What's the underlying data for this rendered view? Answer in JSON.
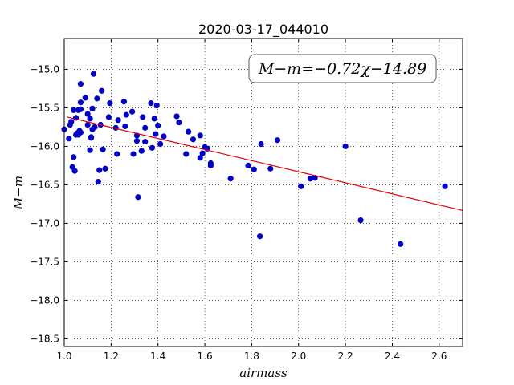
{
  "chart_data": {
    "type": "scatter",
    "title": "2020-03-17_044010",
    "xlabel": "airmass",
    "ylabel": "M−m",
    "xlim": [
      1.0,
      2.7
    ],
    "ylim": [
      -18.6,
      -14.6
    ],
    "y_inverted": true,
    "grid": true,
    "grid_style": "dotted",
    "xticks": [
      1.0,
      1.2,
      1.4,
      1.6,
      1.8,
      2.0,
      2.2,
      2.4,
      2.6
    ],
    "xtick_labels": [
      "1.0",
      "1.2",
      "1.4",
      "1.6",
      "1.8",
      "2.0",
      "2.2",
      "2.4",
      "2.6"
    ],
    "yticks": [
      -15.0,
      -15.5,
      -16.0,
      -16.5,
      -17.0,
      -17.5,
      -18.0,
      -18.5
    ],
    "ytick_labels": [
      "−15.0",
      "−15.5",
      "−16.0",
      "−16.5",
      "−17.0",
      "−17.5",
      "−18.0",
      "−18.5"
    ],
    "annotation": "M−m=−0.72χ−14.89",
    "fit": {
      "slope": -0.72,
      "intercept": -14.89,
      "color": "#e00000"
    },
    "marker_color": "#0000c8",
    "series": [
      {
        "x": [
          1.0,
          1.02,
          1.025,
          1.03,
          1.035,
          1.04,
          1.04,
          1.045,
          1.05,
          1.05,
          1.055,
          1.06,
          1.06,
          1.065,
          1.07,
          1.07,
          1.07,
          1.07,
          1.09,
          1.1,
          1.1,
          1.11,
          1.11,
          1.115,
          1.115,
          1.12,
          1.12,
          1.125,
          1.13,
          1.14,
          1.145,
          1.15,
          1.155,
          1.16,
          1.165,
          1.175,
          1.19,
          1.195,
          1.22,
          1.225,
          1.23,
          1.255,
          1.26,
          1.265,
          1.29,
          1.295,
          1.31,
          1.31,
          1.315,
          1.33,
          1.335,
          1.345,
          1.345,
          1.37,
          1.375,
          1.385,
          1.39,
          1.395,
          1.4,
          1.41,
          1.425,
          1.48,
          1.49,
          1.52,
          1.53,
          1.55,
          1.58,
          1.58,
          1.59,
          1.6,
          1.61,
          1.625,
          1.625,
          1.71,
          1.785,
          1.81,
          1.835,
          1.84,
          1.88,
          1.91,
          2.01,
          2.05,
          2.07,
          2.2,
          2.265,
          2.435,
          2.625
        ],
        "y": [
          -15.78,
          -15.9,
          -15.72,
          -15.68,
          -16.27,
          -15.53,
          -16.14,
          -16.32,
          -15.63,
          -15.85,
          -15.83,
          -15.53,
          -15.85,
          -15.8,
          -15.19,
          -15.52,
          -15.43,
          -15.82,
          -15.37,
          -15.58,
          -15.72,
          -15.64,
          -16.05,
          -15.88,
          -15.89,
          -15.78,
          -15.51,
          -15.06,
          -15.75,
          -15.38,
          -16.46,
          -16.31,
          -15.72,
          -15.28,
          -16.04,
          -16.29,
          -15.62,
          -15.44,
          -15.76,
          -16.1,
          -15.66,
          -15.42,
          -15.74,
          -15.59,
          -15.55,
          -16.1,
          -15.86,
          -15.93,
          -16.66,
          -16.06,
          -15.62,
          -15.94,
          -15.76,
          -15.44,
          -16.02,
          -15.64,
          -15.84,
          -15.47,
          -15.73,
          -15.97,
          -15.87,
          -15.61,
          -15.69,
          -16.1,
          -15.81,
          -15.91,
          -15.86,
          -16.15,
          -16.09,
          -16.01,
          -16.03,
          -16.22,
          -16.25,
          -16.42,
          -16.25,
          -16.3,
          -17.17,
          -15.97,
          -16.29,
          -15.92,
          -16.52,
          -16.42,
          -16.41,
          -16.0,
          -16.96,
          -17.27,
          -16.52
        ]
      }
    ]
  }
}
